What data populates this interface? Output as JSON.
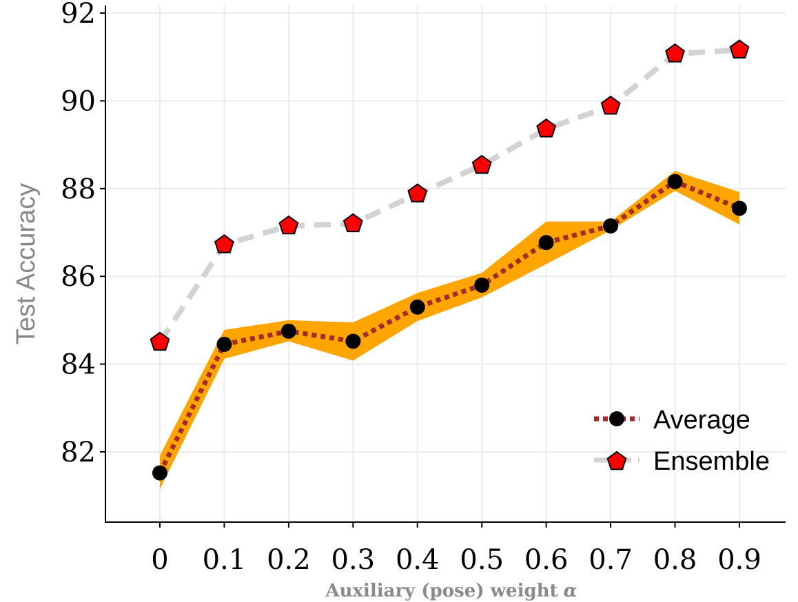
{
  "chart_data": {
    "type": "line",
    "x": [
      0,
      0.1,
      0.2,
      0.3,
      0.4,
      0.5,
      0.6,
      0.7,
      0.8,
      0.9
    ],
    "x_tick_labels": [
      "0",
      "0.1",
      "0.2",
      "0.3",
      "0.4",
      "0.5",
      "0.6",
      "0.7",
      "0.8",
      "0.9"
    ],
    "y_ticks": [
      82,
      84,
      86,
      88,
      90,
      92
    ],
    "ylim": [
      80.9,
      92.2
    ],
    "xlabel": "Auxiliary (pose) weight",
    "xlabel_symbol": "α",
    "ylabel": "Test Accuracy",
    "grid": true,
    "legend_position": "bottom-right",
    "series": [
      {
        "name": "Average",
        "style": "dotted",
        "color": "#a52a2a",
        "marker": "circle",
        "marker_color": "#000000",
        "values": [
          81.52,
          84.45,
          84.75,
          84.52,
          85.3,
          85.8,
          86.77,
          87.15,
          88.16,
          87.55
        ],
        "band_lower": [
          81.15,
          84.12,
          84.52,
          84.08,
          84.98,
          85.52,
          86.28,
          87.05,
          87.95,
          87.18
        ],
        "band_upper": [
          81.92,
          84.78,
          85.0,
          84.95,
          85.62,
          86.08,
          87.25,
          87.25,
          88.4,
          87.92
        ],
        "band_color": "#ffa500"
      },
      {
        "name": "Ensemble",
        "style": "dashed",
        "color": "#d3d3d3",
        "marker": "pentagon",
        "marker_color": "#ff0000",
        "values": [
          84.5,
          86.72,
          87.15,
          87.2,
          87.88,
          88.53,
          89.36,
          89.88,
          91.07,
          91.16
        ]
      }
    ]
  }
}
